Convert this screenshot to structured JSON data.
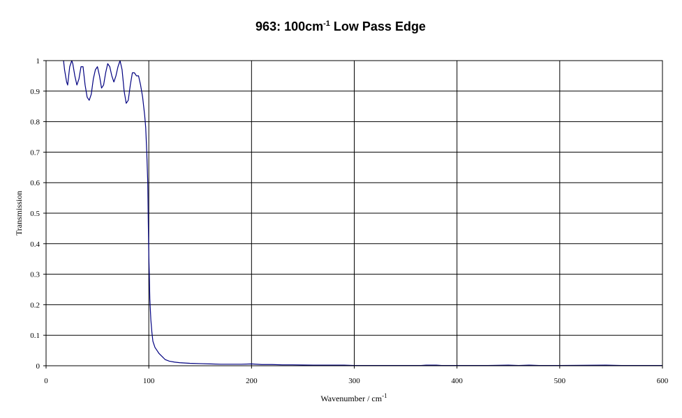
{
  "chart_data": {
    "type": "line",
    "title": "963: 100cm",
    "title_superscript": "-1",
    "title_suffix": " Low Pass Edge",
    "xlabel": "Wavenumber / cm",
    "xlabel_superscript": "-1",
    "ylabel": "Transmission",
    "xlim": [
      0,
      600
    ],
    "ylim": [
      0,
      1
    ],
    "xticks": [
      0,
      100,
      200,
      300,
      400,
      500,
      600
    ],
    "xtick_labels": [
      "0",
      "100",
      "200",
      "300",
      "400",
      "500",
      "600"
    ],
    "yticks": [
      0,
      0.1,
      0.2,
      0.3,
      0.4,
      0.5,
      0.6,
      0.7,
      0.8,
      0.9,
      1
    ],
    "ytick_labels": [
      "0",
      "0.1",
      "0.2",
      "0.3",
      "0.4",
      "0.5",
      "0.6",
      "0.7",
      "0.8",
      "0.9",
      "1"
    ],
    "grid": true,
    "line_color": "#000080",
    "series": [
      {
        "x": [
          17,
          18,
          20,
          21,
          22,
          23,
          25,
          26,
          28,
          30,
          32,
          34,
          36,
          38,
          40,
          42,
          44,
          46,
          48,
          50,
          52,
          54,
          56,
          58,
          60,
          62,
          64,
          66,
          68,
          70,
          72,
          74,
          76,
          78,
          80,
          82,
          84,
          86,
          88,
          90,
          92,
          93,
          94,
          95,
          96,
          97,
          98,
          99,
          99.5,
          100,
          100.5,
          101,
          102,
          103,
          104,
          106,
          108,
          110,
          113,
          116,
          120,
          125,
          130,
          140,
          150,
          160,
          170,
          180,
          190,
          200,
          210,
          220,
          230,
          240,
          260,
          280,
          290,
          300,
          350,
          365,
          370,
          380,
          385,
          400,
          430,
          450,
          460,
          470,
          480,
          500,
          545,
          560,
          600
        ],
        "y": [
          1.0,
          0.97,
          0.93,
          0.92,
          0.95,
          0.98,
          1.0,
          0.99,
          0.95,
          0.92,
          0.94,
          0.98,
          0.98,
          0.92,
          0.88,
          0.87,
          0.89,
          0.94,
          0.97,
          0.98,
          0.95,
          0.91,
          0.92,
          0.96,
          0.99,
          0.98,
          0.95,
          0.93,
          0.95,
          0.98,
          1.0,
          0.97,
          0.9,
          0.86,
          0.87,
          0.92,
          0.96,
          0.96,
          0.95,
          0.95,
          0.92,
          0.9,
          0.88,
          0.85,
          0.82,
          0.78,
          0.7,
          0.6,
          0.47,
          0.36,
          0.3,
          0.22,
          0.15,
          0.11,
          0.08,
          0.06,
          0.05,
          0.04,
          0.03,
          0.02,
          0.015,
          0.012,
          0.01,
          0.008,
          0.007,
          0.006,
          0.005,
          0.005,
          0.005,
          0.006,
          0.004,
          0.004,
          0.003,
          0.003,
          0.002,
          0.002,
          0.002,
          0.001,
          0.001,
          0.001,
          0.002,
          0.002,
          0.001,
          0.001,
          0.001,
          0.002,
          0.001,
          0.002,
          0.001,
          0.001,
          0.002,
          0.001,
          0.001
        ]
      }
    ]
  }
}
